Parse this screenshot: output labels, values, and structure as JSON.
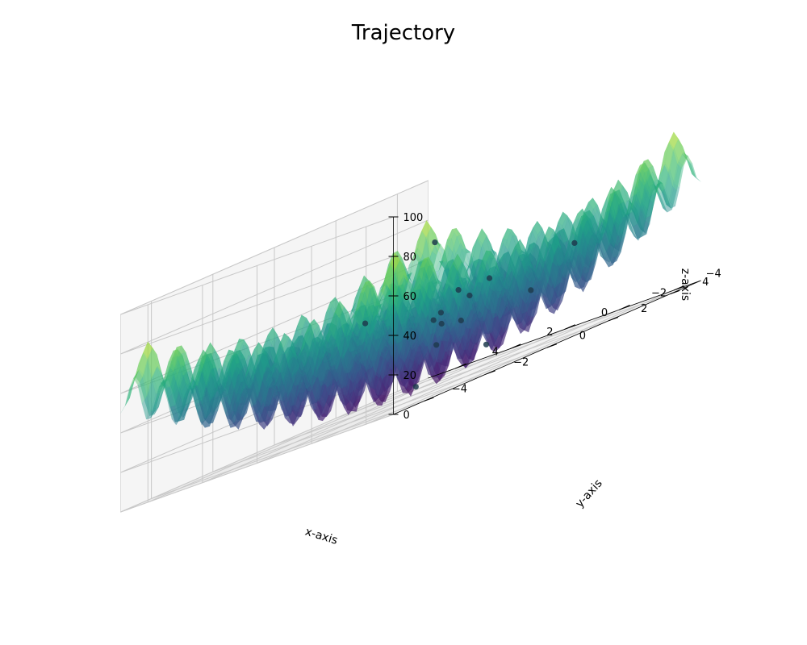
{
  "chart_data": {
    "type": "surface3d",
    "title": "Trajectory",
    "xlabel": "x-axis",
    "ylabel": "y-axis",
    "zlabel": "z-axis",
    "xlim": [
      -5,
      5
    ],
    "ylim": [
      -5,
      5
    ],
    "zlim": [
      0,
      100
    ],
    "x_ticks": [
      4,
      2,
      0,
      -2,
      -4
    ],
    "x_tick_labels": [
      "4",
      "2",
      "0",
      "−2",
      "−4"
    ],
    "y_ticks": [
      -4,
      -2,
      0,
      2,
      4
    ],
    "y_tick_labels": [
      "−4",
      "−2",
      "0",
      "2",
      "4"
    ],
    "z_ticks": [
      0,
      20,
      40,
      60,
      80,
      100
    ],
    "z_tick_labels": [
      "0",
      "20",
      "40",
      "60",
      "80",
      "100"
    ],
    "grid": true,
    "colormap": "viridis",
    "surface_alpha": 0.45,
    "surface": {
      "function": "Rastrigin-like: z = 20 + x^2 + y^2 - 10*(cos(2*pi*x) + cos(2*pi*y))"
    },
    "trajectory_points": [
      {
        "x": 4.3,
        "y": 4.6,
        "z": 68
      },
      {
        "x": 4.6,
        "y": 2.6,
        "z": 42
      },
      {
        "x": 3.1,
        "y": 4.3,
        "z": 40
      },
      {
        "x": 2.5,
        "y": 3.2,
        "z": 33
      },
      {
        "x": 2.3,
        "y": 4.6,
        "z": 40
      },
      {
        "x": 1.9,
        "y": 3.6,
        "z": 36
      },
      {
        "x": 1.2,
        "y": 2.7,
        "z": 26
      },
      {
        "x": -0.3,
        "y": -0.1,
        "z": 4
      },
      {
        "x": -0.4,
        "y": 2.1,
        "z": 10
      },
      {
        "x": -1.5,
        "y": -0.5,
        "z": 22
      },
      {
        "x": -2.3,
        "y": -1.3,
        "z": 36
      },
      {
        "x": -3.5,
        "y": 0.8,
        "z": 31
      },
      {
        "x": -4.2,
        "y": 1.6,
        "z": 46
      },
      {
        "x": 1.8,
        "y": 2.6,
        "z": 28
      }
    ],
    "colors": {
      "pane": "#f2f2f2",
      "grid": "#c8c8c8",
      "points": "#1f3b4d"
    }
  }
}
